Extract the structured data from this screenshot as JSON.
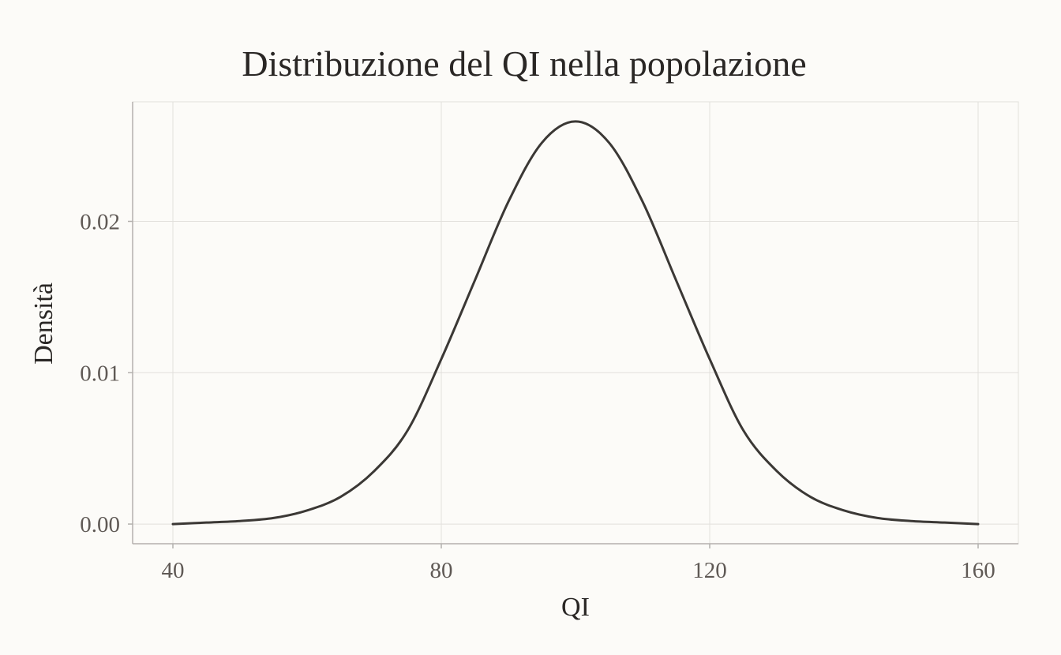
{
  "chart_data": {
    "type": "line",
    "title": "Distribuzione del QI nella popolazione",
    "xlabel": "QI",
    "ylabel": "Densità",
    "xlim": [
      34,
      166
    ],
    "ylim": [
      -0.0013,
      0.0279
    ],
    "x_ticks": [
      40,
      80,
      120,
      160
    ],
    "x_tick_labels": [
      "40",
      "80",
      "120",
      "160"
    ],
    "y_ticks": [
      0.0,
      0.01,
      0.02
    ],
    "y_tick_labels": [
      "0.00",
      "0.01",
      "0.02"
    ],
    "grid": true,
    "series": [
      {
        "x": [
          40,
          45,
          50,
          55,
          60,
          65,
          70,
          75,
          80,
          85,
          90,
          95,
          100,
          105,
          110,
          115,
          120,
          125,
          130,
          135,
          140,
          145,
          150,
          155,
          160
        ],
        "y": [
          0.0,
          0.0001,
          0.0002,
          0.0004,
          0.0009,
          0.0018,
          0.0035,
          0.0062,
          0.0109,
          0.0161,
          0.0213,
          0.0252,
          0.0266,
          0.0252,
          0.0213,
          0.0161,
          0.0109,
          0.0062,
          0.0035,
          0.0018,
          0.0009,
          0.0004,
          0.0002,
          0.0001,
          0.0
        ]
      }
    ]
  }
}
